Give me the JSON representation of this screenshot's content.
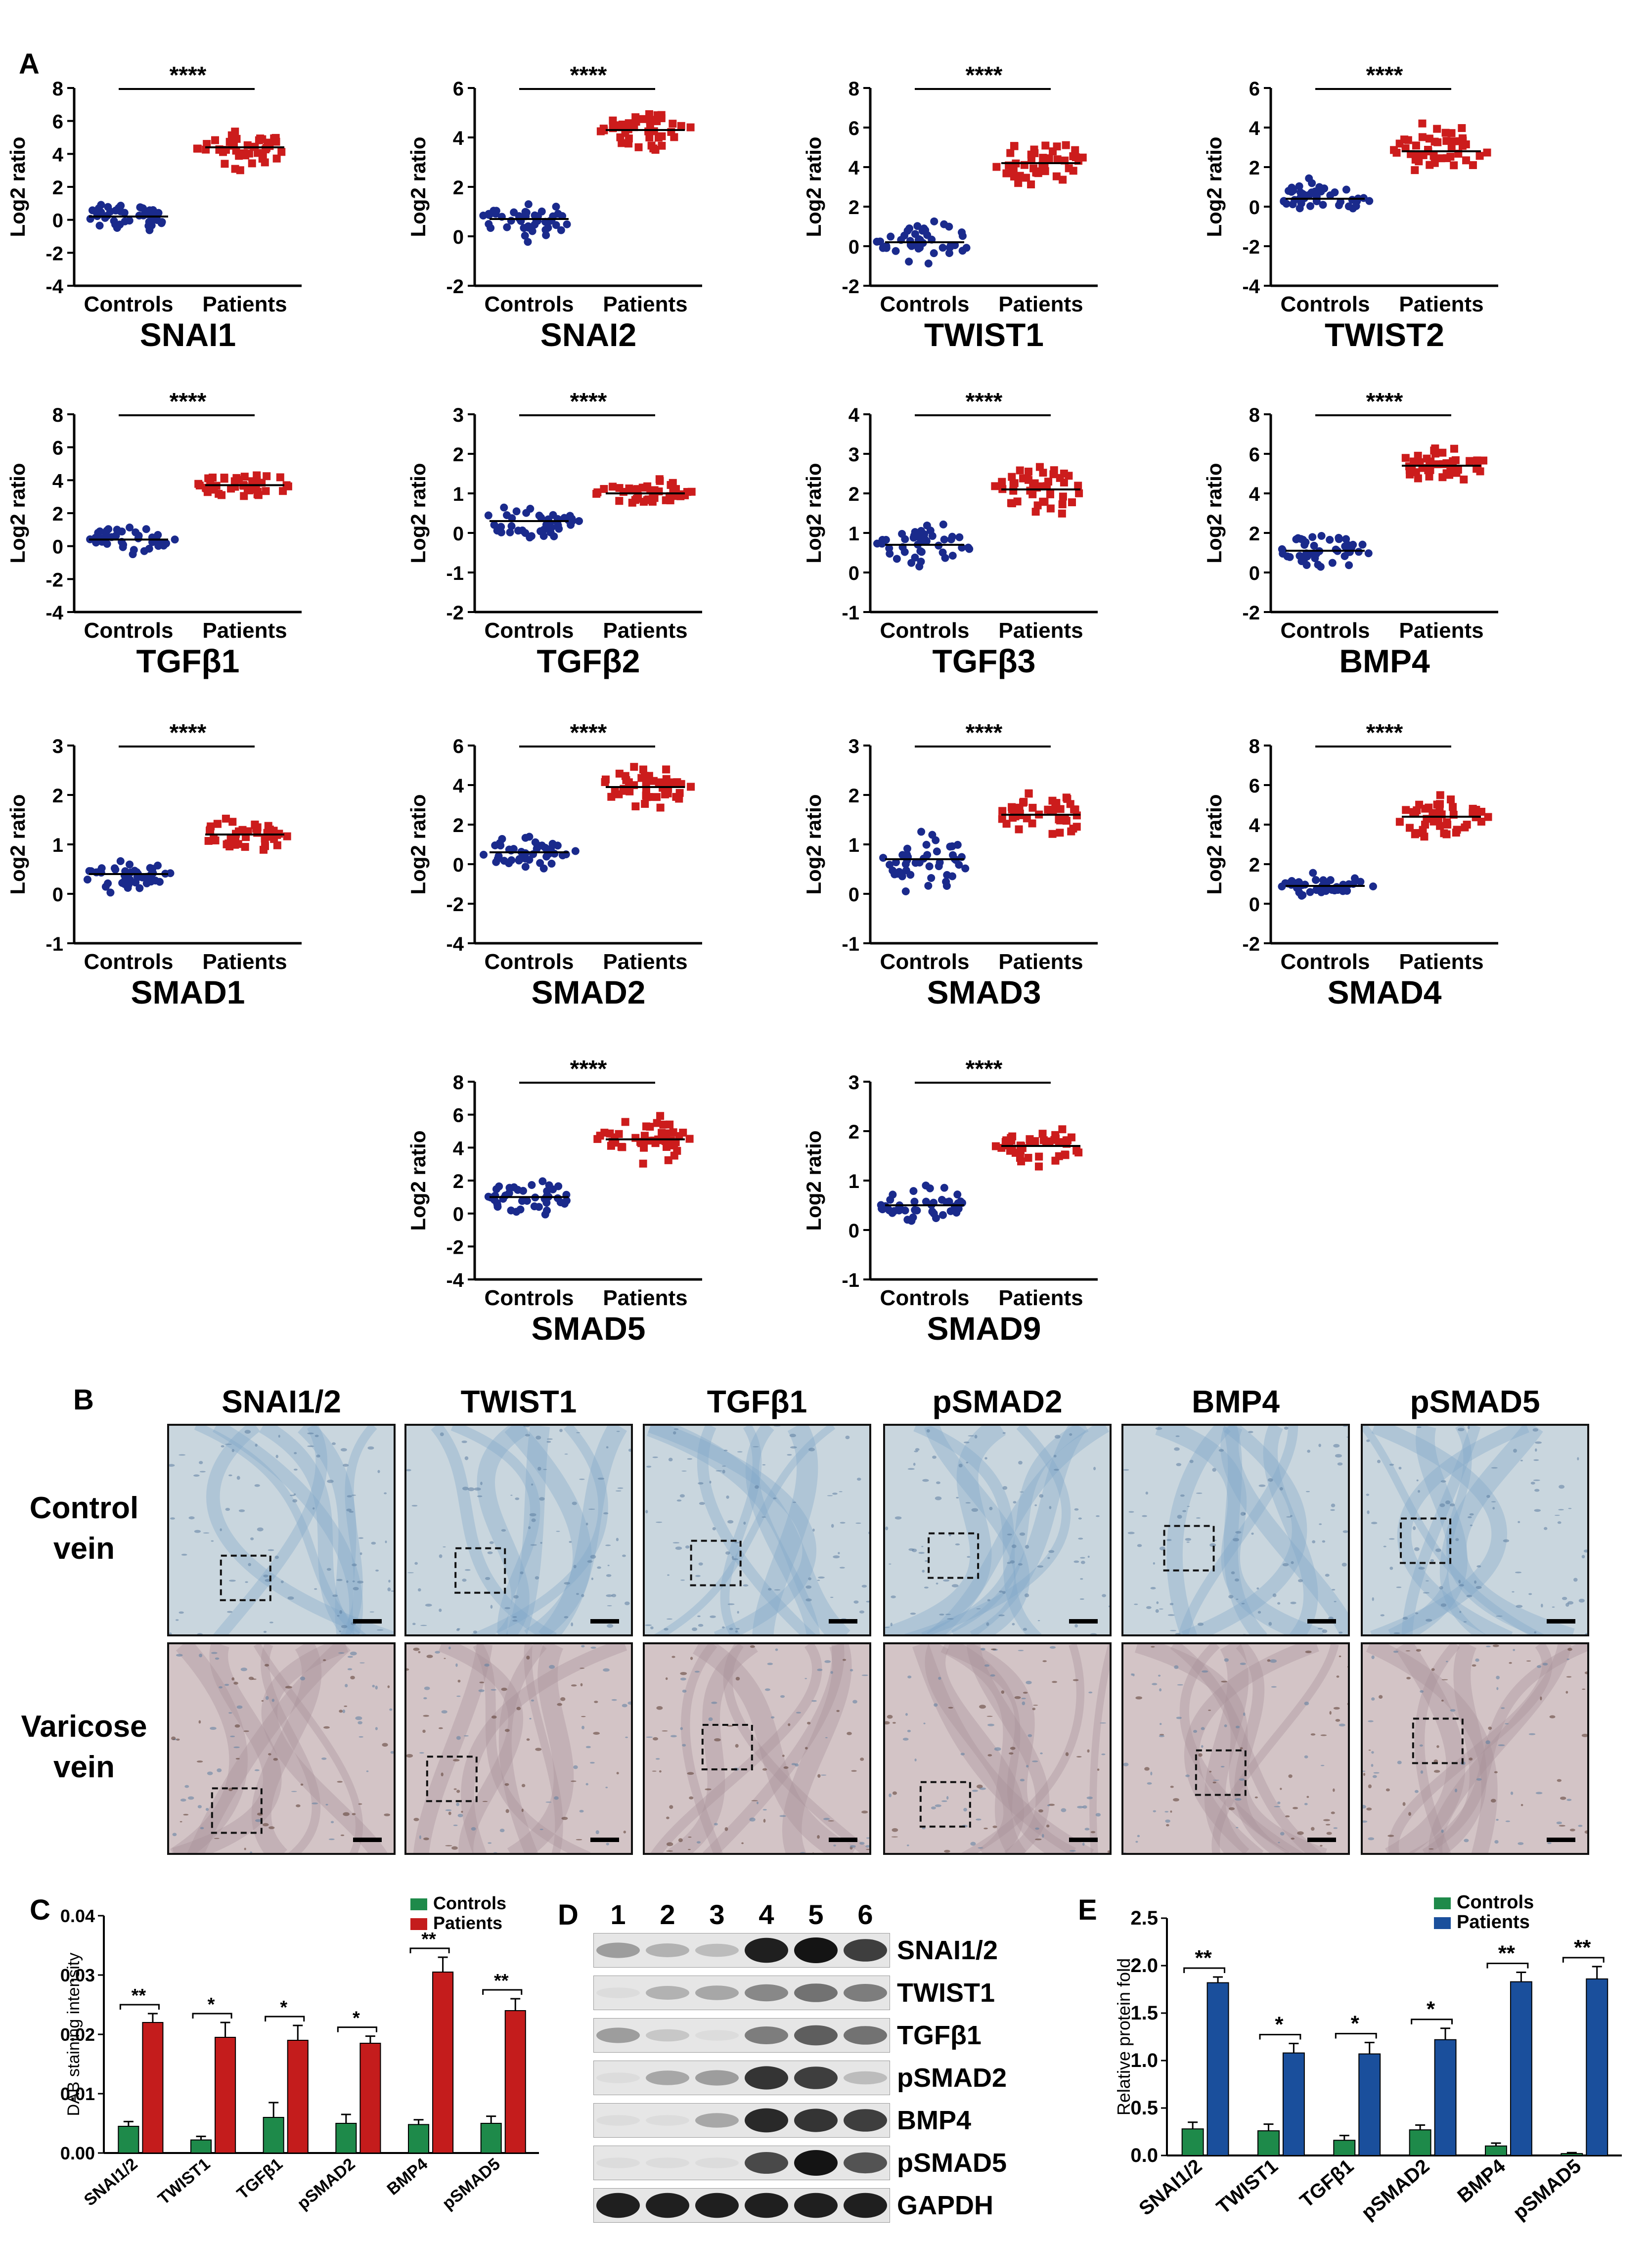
{
  "panelA": {
    "letter": "A",
    "yAxisLabel": "Log2 ratio",
    "groups": [
      "Controls",
      "Patients"
    ],
    "significance": "****",
    "control_color": "#1a2a8c",
    "patient_color": "#cc1c1c",
    "plots": [
      {
        "gene": "SNAI1",
        "yticks": [
          "8",
          "6",
          "4",
          "2",
          "0",
          "-2",
          "-4"
        ],
        "ymin": -4,
        "ymax": 8,
        "control_median": 0.2,
        "patient_median": 4.4,
        "control_spread": 0.8,
        "patient_spread": 0.9
      },
      {
        "gene": "SNAI2",
        "yticks": [
          "6",
          "4",
          "2",
          "0",
          "-2"
        ],
        "ymin": -2,
        "ymax": 6,
        "control_median": 0.7,
        "patient_median": 4.3,
        "control_spread": 0.8,
        "patient_spread": 0.7
      },
      {
        "gene": "TWIST1",
        "yticks": [
          "8",
          "6",
          "4",
          "2",
          "0",
          "-2"
        ],
        "ymin": -2,
        "ymax": 8,
        "control_median": 0.2,
        "patient_median": 4.2,
        "control_spread": 0.9,
        "patient_spread": 1.0
      },
      {
        "gene": "TWIST2",
        "yticks": [
          "6",
          "4",
          "2",
          "0",
          "-2",
          "-4"
        ],
        "ymin": -4,
        "ymax": 6,
        "control_median": 0.4,
        "patient_median": 2.8,
        "control_spread": 0.8,
        "patient_spread": 1.2
      },
      {
        "gene": "TGFβ1",
        "yticks": [
          "8",
          "6",
          "4",
          "2",
          "0",
          "-2",
          "-4"
        ],
        "ymin": -4,
        "ymax": 8,
        "control_median": 0.4,
        "patient_median": 3.7,
        "control_spread": 0.6,
        "patient_spread": 0.8
      },
      {
        "gene": "TGFβ2",
        "yticks": [
          "3",
          "2",
          "1",
          "0",
          "-1",
          "-2"
        ],
        "ymin": -2,
        "ymax": 3,
        "control_median": 0.3,
        "patient_median": 1.0,
        "control_spread": 0.4,
        "patient_spread": 0.3
      },
      {
        "gene": "TGFβ3",
        "yticks": [
          "4",
          "3",
          "2",
          "1",
          "0",
          "-1"
        ],
        "ymin": -1,
        "ymax": 4,
        "control_median": 0.7,
        "patient_median": 2.1,
        "control_spread": 0.5,
        "patient_spread": 0.5
      },
      {
        "gene": "BMP4",
        "yticks": [
          "8",
          "6",
          "4",
          "2",
          "0",
          "-2"
        ],
        "ymin": -2,
        "ymax": 8,
        "control_median": 1.1,
        "patient_median": 5.4,
        "control_spread": 0.7,
        "patient_spread": 0.8
      },
      {
        "gene": "SMAD1",
        "yticks": [
          "3",
          "2",
          "1",
          "0",
          "-1"
        ],
        "ymin": -1,
        "ymax": 3,
        "control_median": 0.4,
        "patient_median": 1.2,
        "control_spread": 0.3,
        "patient_spread": 0.3
      },
      {
        "gene": "SMAD2",
        "yticks": [
          "6",
          "4",
          "2",
          "0",
          "-2",
          "-4"
        ],
        "ymin": -4,
        "ymax": 6,
        "control_median": 0.6,
        "patient_median": 3.9,
        "control_spread": 0.7,
        "patient_spread": 0.9
      },
      {
        "gene": "SMAD3",
        "yticks": [
          "3",
          "2",
          "1",
          "0",
          "-1"
        ],
        "ymin": -1,
        "ymax": 3,
        "control_median": 0.7,
        "patient_median": 1.6,
        "control_spread": 0.5,
        "patient_spread": 0.4
      },
      {
        "gene": "SMAD4",
        "yticks": [
          "8",
          "6",
          "4",
          "2",
          "0",
          "-2"
        ],
        "ymin": -2,
        "ymax": 8,
        "control_median": 0.9,
        "patient_median": 4.4,
        "control_spread": 0.5,
        "patient_spread": 0.9
      },
      {
        "gene": "SMAD5",
        "yticks": [
          "8",
          "6",
          "4",
          "2",
          "0",
          "-2",
          "-4"
        ],
        "ymin": -4,
        "ymax": 8,
        "control_median": 1.0,
        "patient_median": 4.5,
        "control_spread": 0.9,
        "patient_spread": 1.1
      },
      {
        "gene": "SMAD9",
        "yticks": [
          "3",
          "2",
          "1",
          "0",
          "-1"
        ],
        "ymin": -1,
        "ymax": 3,
        "control_median": 0.5,
        "patient_median": 1.7,
        "control_spread": 0.3,
        "patient_spread": 0.3
      }
    ]
  },
  "panelB": {
    "letter": "B",
    "columns": [
      "SNAI1/2",
      "TWIST1",
      "TGFβ1",
      "pSMAD2",
      "BMP4",
      "pSMAD5"
    ],
    "rows": [
      {
        "line1": "Control",
        "line2": "vein"
      },
      {
        "line1": "Varicose",
        "line2": "vein"
      }
    ]
  },
  "panelC": {
    "letter": "C",
    "chart_data": {
      "type": "bar",
      "ylabel": "DAB staining intensity",
      "ylim": [
        0,
        0.04
      ],
      "yticks": [
        "0.04",
        "0.03",
        "0.02",
        "0.01",
        "0.00"
      ],
      "categories": [
        "SNAI1/2",
        "TWIST1",
        "TGFβ1",
        "pSMAD2",
        "BMP4",
        "pSMAD5"
      ],
      "series": [
        {
          "name": "Controls",
          "color": "#1e8a4a",
          "values": [
            0.0045,
            0.0022,
            0.006,
            0.005,
            0.0048,
            0.005
          ],
          "errors": [
            0.0008,
            0.0006,
            0.0025,
            0.0015,
            0.0008,
            0.0012
          ]
        },
        {
          "name": "Patients",
          "color": "#c41c1c",
          "values": [
            0.022,
            0.0195,
            0.019,
            0.0185,
            0.0305,
            0.024
          ],
          "errors": [
            0.0015,
            0.0025,
            0.0025,
            0.0012,
            0.0025,
            0.002
          ]
        }
      ],
      "significance": [
        "**",
        "*",
        "*",
        "*",
        "**",
        "**"
      ],
      "legend": "top-right"
    }
  },
  "panelD": {
    "letter": "D",
    "lanes": [
      "1",
      "2",
      "3",
      "4",
      "5",
      "6"
    ],
    "blots": [
      {
        "label": "SNAI1/2",
        "intensity": [
          0.35,
          0.25,
          0.2,
          0.95,
          1.0,
          0.8
        ]
      },
      {
        "label": "TWIST1",
        "intensity": [
          0.05,
          0.25,
          0.3,
          0.45,
          0.55,
          0.5
        ]
      },
      {
        "label": "TGFβ1",
        "intensity": [
          0.35,
          0.15,
          0.05,
          0.5,
          0.65,
          0.55
        ]
      },
      {
        "label": "pSMAD2",
        "intensity": [
          0.05,
          0.3,
          0.35,
          0.85,
          0.8,
          0.2
        ]
      },
      {
        "label": "BMP4",
        "intensity": [
          0.05,
          0.05,
          0.3,
          0.9,
          0.85,
          0.8
        ]
      },
      {
        "label": "pSMAD5",
        "intensity": [
          0.05,
          0.05,
          0.05,
          0.75,
          1.0,
          0.7
        ]
      },
      {
        "label": "GAPDH",
        "intensity": [
          0.95,
          0.95,
          0.95,
          0.95,
          0.95,
          0.95
        ]
      }
    ]
  },
  "panelE": {
    "letter": "E",
    "chart_data": {
      "type": "bar",
      "ylabel": "Relative protein fold",
      "ylim": [
        0,
        2.5
      ],
      "yticks": [
        "2.5",
        "2.0",
        "1.5",
        "1.0",
        "0.5",
        "0.0"
      ],
      "categories": [
        "SNAI1/2",
        "TWIST1",
        "TGFβ1",
        "pSMAD2",
        "BMP4",
        "pSMAD5"
      ],
      "series": [
        {
          "name": "Controls",
          "color": "#1e8a4a",
          "values": [
            0.28,
            0.26,
            0.16,
            0.27,
            0.1,
            0.02
          ],
          "errors": [
            0.07,
            0.07,
            0.05,
            0.05,
            0.03,
            0.01
          ]
        },
        {
          "name": "Patients",
          "color": "#1a4f9c",
          "values": [
            1.82,
            1.08,
            1.07,
            1.22,
            1.83,
            1.86
          ],
          "errors": [
            0.06,
            0.1,
            0.12,
            0.12,
            0.1,
            0.13
          ]
        }
      ],
      "significance": [
        "**",
        "*",
        "*",
        "*",
        "**",
        "**"
      ],
      "legend": "top-right"
    }
  }
}
